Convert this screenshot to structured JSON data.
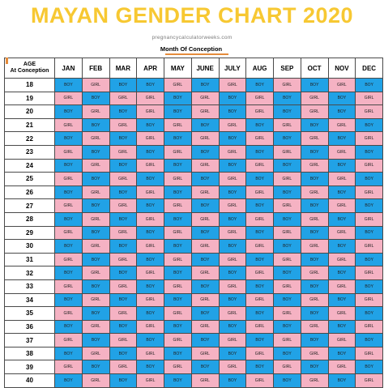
{
  "title": "MAYAN GENDER CHART 2020",
  "subtitle": "pregnancycalculatorweeks.com",
  "month_caption": "Month Of Conception",
  "age_header": [
    "AGE",
    "At Conception"
  ],
  "months": [
    "JAN",
    "FEB",
    "MAR",
    "APR",
    "MAY",
    "JUNE",
    "JULY",
    "AUG",
    "SEP",
    "OCT",
    "NOV",
    "DEC"
  ],
  "colors": {
    "boy": "#21a2e6",
    "girl": "#f5b2c3",
    "title": "#f7c832",
    "accent": "#e58b3a"
  },
  "rows": [
    {
      "age": "18",
      "cells": [
        "BOY",
        "GIRL",
        "BOY",
        "BOY",
        "GIRL",
        "BOY",
        "GIRL",
        "BOY",
        "GIRL",
        "BOY",
        "GIRL",
        "BOY"
      ]
    },
    {
      "age": "19",
      "cells": [
        "GIRL",
        "BOY",
        "GIRL",
        "GIRL",
        "BOY",
        "GIRL",
        "BOY",
        "GIRL",
        "BOY",
        "GIRL",
        "BOY",
        "GIRL"
      ]
    },
    {
      "age": "20",
      "cells": [
        "BOY",
        "GIRL",
        "BOY",
        "GIRL",
        "BOY",
        "GIRL",
        "BOY",
        "GIRL",
        "BOY",
        "GIRL",
        "BOY",
        "GIRL"
      ]
    },
    {
      "age": "21",
      "cells": [
        "GIRL",
        "BOY",
        "GIRL",
        "BOY",
        "GIRL",
        "BOY",
        "GIRL",
        "BOY",
        "GIRL",
        "BOY",
        "GIRL",
        "BOY"
      ]
    },
    {
      "age": "22",
      "cells": [
        "BOY",
        "GIRL",
        "BOY",
        "GIRL",
        "BOY",
        "GIRL",
        "BOY",
        "GIRL",
        "BOY",
        "GIRL",
        "BOY",
        "GIRL"
      ]
    },
    {
      "age": "23",
      "cells": [
        "GIRL",
        "BOY",
        "GIRL",
        "BOY",
        "GIRL",
        "BOY",
        "GIRL",
        "BOY",
        "GIRL",
        "BOY",
        "GIRL",
        "BOY"
      ]
    },
    {
      "age": "24",
      "cells": [
        "BOY",
        "GIRL",
        "BOY",
        "GIRL",
        "BOY",
        "GIRL",
        "BOY",
        "GIRL",
        "BOY",
        "GIRL",
        "BOY",
        "GIRL"
      ]
    },
    {
      "age": "25",
      "cells": [
        "GIRL",
        "BOY",
        "GIRL",
        "BOY",
        "GIRL",
        "BOY",
        "GIRL",
        "BOY",
        "GIRL",
        "BOY",
        "GIRL",
        "BOY"
      ]
    },
    {
      "age": "26",
      "cells": [
        "BOY",
        "GIRL",
        "BOY",
        "GIRL",
        "BOY",
        "GIRL",
        "BOY",
        "GIRL",
        "BOY",
        "GIRL",
        "BOY",
        "GIRL"
      ]
    },
    {
      "age": "27",
      "cells": [
        "GIRL",
        "BOY",
        "GIRL",
        "BOY",
        "GIRL",
        "BOY",
        "GIRL",
        "BOY",
        "GIRL",
        "BOY",
        "GIRL",
        "BOY"
      ]
    },
    {
      "age": "28",
      "cells": [
        "BOY",
        "GIRL",
        "BOY",
        "GIRL",
        "BOY",
        "GIRL",
        "BOY",
        "GIRL",
        "BOY",
        "GIRL",
        "BOY",
        "GIRL"
      ]
    },
    {
      "age": "29",
      "cells": [
        "GIRL",
        "BOY",
        "GIRL",
        "BOY",
        "GIRL",
        "BOY",
        "GIRL",
        "BOY",
        "GIRL",
        "BOY",
        "GIRL",
        "BOY"
      ]
    },
    {
      "age": "30",
      "cells": [
        "BOY",
        "GIRL",
        "BOY",
        "GIRL",
        "BOY",
        "GIRL",
        "BOY",
        "GIRL",
        "BOY",
        "GIRL",
        "BOY",
        "GIRL"
      ]
    },
    {
      "age": "31",
      "cells": [
        "GIRL",
        "BOY",
        "GIRL",
        "BOY",
        "GIRL",
        "BOY",
        "GIRL",
        "BOY",
        "GIRL",
        "BOY",
        "GIRL",
        "BOY"
      ]
    },
    {
      "age": "32",
      "cells": [
        "BOY",
        "GIRL",
        "BOY",
        "GIRL",
        "BOY",
        "GIRL",
        "BOY",
        "GIRL",
        "BOY",
        "GIRL",
        "BOY",
        "GIRL"
      ]
    },
    {
      "age": "33",
      "cells": [
        "GIRL",
        "BOY",
        "GIRL",
        "BOY",
        "GIRL",
        "BOY",
        "GIRL",
        "BOY",
        "GIRL",
        "BOY",
        "GIRL",
        "BOY"
      ]
    },
    {
      "age": "34",
      "cells": [
        "BOY",
        "GIRL",
        "BOY",
        "GIRL",
        "BOY",
        "GIRL",
        "BOY",
        "GIRL",
        "BOY",
        "GIRL",
        "BOY",
        "GIRL"
      ]
    },
    {
      "age": "35",
      "cells": [
        "GIRL",
        "BOY",
        "GIRL",
        "BOY",
        "GIRL",
        "BOY",
        "GIRL",
        "BOY",
        "GIRL",
        "BOY",
        "GIRL",
        "BOY"
      ]
    },
    {
      "age": "36",
      "cells": [
        "BOY",
        "GIRL",
        "BOY",
        "GIRL",
        "BOY",
        "GIRL",
        "BOY",
        "GIRL",
        "BOY",
        "GIRL",
        "BOY",
        "GIRL"
      ]
    },
    {
      "age": "37",
      "cells": [
        "GIRL",
        "BOY",
        "GIRL",
        "BOY",
        "GIRL",
        "BOY",
        "GIRL",
        "BOY",
        "GIRL",
        "BOY",
        "GIRL",
        "BOY"
      ]
    },
    {
      "age": "38",
      "cells": [
        "BOY",
        "GIRL",
        "BOY",
        "GIRL",
        "BOY",
        "GIRL",
        "BOY",
        "GIRL",
        "BOY",
        "GIRL",
        "BOY",
        "GIRL"
      ]
    },
    {
      "age": "39",
      "cells": [
        "GIRL",
        "BOY",
        "GIRL",
        "BOY",
        "GIRL",
        "BOY",
        "GIRL",
        "BOY",
        "GIRL",
        "BOY",
        "GIRL",
        "BOY"
      ]
    },
    {
      "age": "40",
      "cells": [
        "BOY",
        "GIRL",
        "BOY",
        "GIRL",
        "BOY",
        "GIRL",
        "BOY",
        "GIRL",
        "BOY",
        "GIRL",
        "BOY",
        "GIRL"
      ]
    }
  ]
}
